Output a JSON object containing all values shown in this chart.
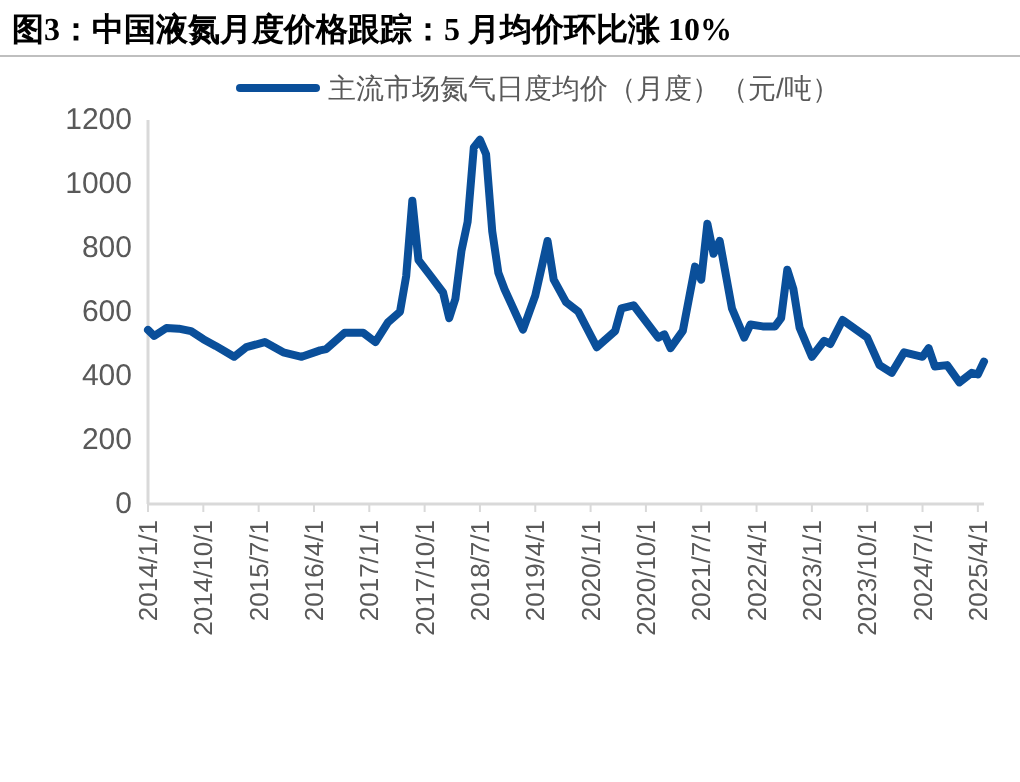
{
  "chart_data": {
    "type": "line",
    "title": "图3：中国液氮月度价格跟踪：5 月均价环比涨 10%",
    "x": [
      "2014-01",
      "2014-02",
      "2014-04",
      "2014-06",
      "2014-08",
      "2014-10",
      "2014-12",
      "2015-03",
      "2015-05",
      "2015-08",
      "2015-11",
      "2016-02",
      "2016-05",
      "2016-06",
      "2016-09",
      "2016-12",
      "2017-02",
      "2017-04",
      "2017-06",
      "2017-07",
      "2017-08",
      "2017-09",
      "2017-11",
      "2018-01",
      "2018-02",
      "2018-03",
      "2018-04",
      "2018-05",
      "2018-06",
      "2018-07",
      "2018-08",
      "2018-09",
      "2018-10",
      "2018-11",
      "2019-02",
      "2019-04",
      "2019-06",
      "2019-07",
      "2019-09",
      "2019-11",
      "2020-02",
      "2020-05",
      "2020-06",
      "2020-08",
      "2020-12",
      "2021-01",
      "2021-02",
      "2021-04",
      "2021-06",
      "2021-07",
      "2021-08",
      "2021-09",
      "2021-10",
      "2021-12",
      "2022-02",
      "2022-03",
      "2022-05",
      "2022-07",
      "2022-08",
      "2022-09",
      "2022-10",
      "2022-11",
      "2023-01",
      "2023-03",
      "2023-04",
      "2023-06",
      "2023-10",
      "2023-12",
      "2024-02",
      "2024-04",
      "2024-07",
      "2024-08",
      "2024-09",
      "2024-11",
      "2025-01",
      "2025-03",
      "2025-04",
      "2025-05"
    ],
    "series": [
      {
        "name": "主流市场氮气日度均价（月度）（元/吨）",
        "color": "#0a4f9a",
        "values": [
          544,
          525,
          550,
          548,
          540,
          515,
          494,
          460,
          490,
          506,
          474,
          460,
          480,
          484,
          535,
          535,
          506,
          567,
          601,
          712,
          948,
          762,
          712,
          661,
          581,
          641,
          792,
          882,
          1114,
          1138,
          1093,
          852,
          722,
          671,
          545,
          651,
          822,
          701,
          631,
          601,
          490,
          541,
          611,
          621,
          520,
          530,
          487,
          541,
          742,
          701,
          876,
          782,
          822,
          611,
          520,
          561,
          555,
          555,
          581,
          732,
          671,
          551,
          460,
          510,
          500,
          575,
          520,
          434,
          410,
          474,
          460,
          487,
          430,
          434,
          380,
          410,
          405,
          445
        ]
      }
    ],
    "xlim": [
      "2014-01",
      "2025-05"
    ],
    "xticks": [
      {
        "value": "2014-01",
        "label": "2014/1/1"
      },
      {
        "value": "2014-10",
        "label": "2014/10/1"
      },
      {
        "value": "2015-07",
        "label": "2015/7/1"
      },
      {
        "value": "2016-04",
        "label": "2016/4/1"
      },
      {
        "value": "2017-01",
        "label": "2017/1/1"
      },
      {
        "value": "2017-10",
        "label": "2017/10/1"
      },
      {
        "value": "2018-07",
        "label": "2018/7/1"
      },
      {
        "value": "2019-04",
        "label": "2019/4/1"
      },
      {
        "value": "2020-01",
        "label": "2020/1/1"
      },
      {
        "value": "2020-10",
        "label": "2020/10/1"
      },
      {
        "value": "2021-07",
        "label": "2021/7/1"
      },
      {
        "value": "2022-04",
        "label": "2022/4/1"
      },
      {
        "value": "2023-01",
        "label": "2023/1/1"
      },
      {
        "value": "2023-10",
        "label": "2023/10/1"
      },
      {
        "value": "2024-07",
        "label": "2024/7/1"
      },
      {
        "value": "2025-04",
        "label": "2025/4/1"
      }
    ],
    "ylim": [
      0,
      1200
    ],
    "yticks": [
      0,
      200,
      400,
      600,
      800,
      1000,
      1200
    ],
    "legend": "top right",
    "grid": false,
    "marker": "none",
    "line_style": "solid"
  }
}
